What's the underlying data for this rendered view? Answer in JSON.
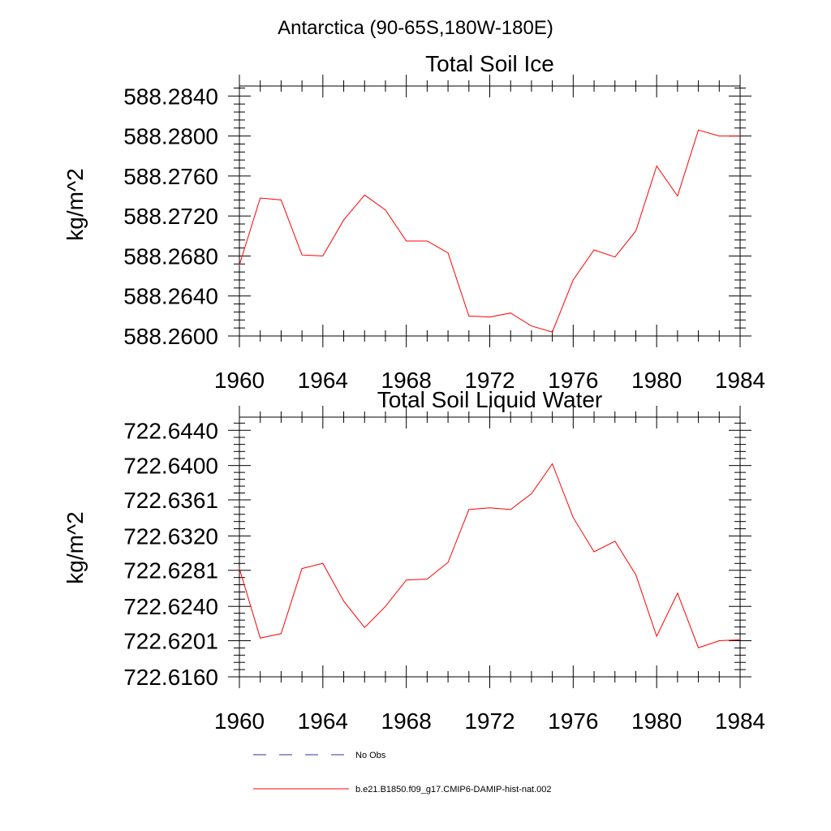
{
  "header": {
    "region": "Antarctica (90-65S,180W-180E)"
  },
  "chart_data": [
    {
      "type": "line",
      "title": "Total Soil Ice",
      "xlabel": "",
      "ylabel": "kg/m^2",
      "xlim": [
        1960,
        1984
      ],
      "ylim": [
        588.26,
        588.285
      ],
      "x_ticks": [
        1960,
        1964,
        1968,
        1972,
        1976,
        1980,
        1984
      ],
      "x_tick_labels": [
        "1960",
        "1964",
        "1968",
        "1972",
        "1976",
        "1980",
        "1984"
      ],
      "y_ticks": [
        588.26,
        588.264,
        588.268,
        588.272,
        588.276,
        588.28,
        588.284
      ],
      "y_tick_labels": [
        "588.2600",
        "588.2640",
        "588.2680",
        "588.2720",
        "588.2760",
        "588.2800",
        "588.2840"
      ],
      "x": [
        1960,
        1961,
        1962,
        1963,
        1964,
        1965,
        1966,
        1967,
        1968,
        1969,
        1970,
        1971,
        1972,
        1973,
        1974,
        1975,
        1976,
        1977,
        1978,
        1979,
        1980,
        1981,
        1982,
        1983,
        1984
      ],
      "series": [
        {
          "name": "b.e21.B1850.f09_g17.CMIP6-DAMIP-hist-nat.002",
          "color": "#ff0000",
          "values": [
            588.2671,
            588.2738,
            588.2736,
            588.2681,
            588.268,
            588.2716,
            588.2741,
            588.2726,
            588.2695,
            588.2695,
            588.2683,
            588.262,
            588.2619,
            588.2623,
            588.261,
            588.2604,
            588.2656,
            588.2686,
            588.2679,
            588.2705,
            588.277,
            588.274,
            588.2806,
            588.28,
            588.28
          ]
        }
      ],
      "grid": false
    },
    {
      "type": "line",
      "title": "Total Soil Liquid Water",
      "xlabel": "",
      "ylabel": "kg/m^2",
      "xlim": [
        1960,
        1984
      ],
      "ylim": [
        722.616,
        722.6455
      ],
      "x_ticks": [
        1960,
        1964,
        1968,
        1972,
        1976,
        1980,
        1984
      ],
      "x_tick_labels": [
        "1960",
        "1964",
        "1968",
        "1972",
        "1976",
        "1980",
        "1984"
      ],
      "y_ticks": [
        722.616,
        722.6201,
        722.624,
        722.6281,
        722.632,
        722.6361,
        722.64,
        722.644
      ],
      "y_tick_labels": [
        "722.6160",
        "722.6201",
        "722.6240",
        "722.6281",
        "722.6320",
        "722.6361",
        "722.6400",
        "722.6440"
      ],
      "x": [
        1960,
        1961,
        1962,
        1963,
        1964,
        1965,
        1966,
        1967,
        1968,
        1969,
        1970,
        1971,
        1972,
        1973,
        1974,
        1975,
        1976,
        1977,
        1978,
        1979,
        1980,
        1981,
        1982,
        1983,
        1984
      ],
      "series": [
        {
          "name": "b.e21.B1850.f09_g17.CMIP6-DAMIP-hist-nat.002",
          "color": "#ff0000",
          "values": [
            722.6283,
            722.6204,
            722.6209,
            722.6283,
            722.6289,
            722.6246,
            722.6216,
            722.624,
            722.627,
            722.6271,
            722.629,
            722.635,
            722.6352,
            722.635,
            722.6368,
            722.6402,
            722.6341,
            722.6302,
            722.6314,
            722.6276,
            722.6206,
            722.6255,
            722.6193,
            722.6201,
            722.6202
          ]
        }
      ],
      "grid": false
    }
  ],
  "legend": {
    "placement": "bottom",
    "items": [
      {
        "label": "No Obs",
        "color": "#333399",
        "style": "dashed"
      },
      {
        "label": "b.e21.B1850.f09_g17.CMIP6-DAMIP-hist-nat.002",
        "color": "#ff0000",
        "style": "solid"
      }
    ]
  }
}
